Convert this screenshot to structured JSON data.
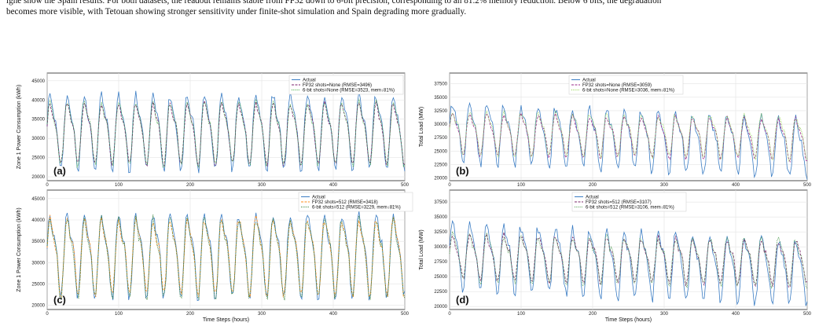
{
  "caption": {
    "line1": "ighe show the Spain results. For both datasets, the readout remains stable from FP32 down to 6-bit precision, corresponding to an 81.2% memory reduction. Below 6 bits, the degradation",
    "line2": "becomes more visible, with Tetouan showing stronger sensitivity under finite-shot simulation and Spain degrading more gradually."
  },
  "colors": {
    "actual": "#3b7dc4",
    "fp32_a": "#7a1f6e",
    "six_a": "#3aa63a",
    "fp32_c": "#ff8c1a",
    "six_c": "#2c7a2c",
    "fp32_b": "#9a2a8a",
    "six_b": "#8fd14a",
    "fp32_d": "#7a2a6a",
    "six_d": "#4a9a4a"
  },
  "chart_data": [
    {
      "panel": "(a)",
      "type": "line",
      "xlabel": "",
      "ylabel": "Zone 1 Power Consumption (kWh)",
      "xlim": [
        0,
        500
      ],
      "ylim": [
        19000,
        47000
      ],
      "xticks": [
        0,
        100,
        200,
        300,
        400,
        500
      ],
      "yticks": [
        20000,
        25000,
        30000,
        35000,
        40000,
        45000
      ],
      "period": 24,
      "n": 500,
      "series": [
        {
          "name": "Actual",
          "base": 32500,
          "amp": 11500,
          "trend": 0,
          "noise": 1200
        },
        {
          "name": "FP32 shots=None (RMSE=3496)",
          "base": 32000,
          "amp": 9500,
          "trend": 0,
          "noise": 800
        },
        {
          "name": "6-bit shots=None (RMSE=3523, mem↓81%)",
          "base": 32100,
          "amp": 9700,
          "trend": 0,
          "noise": 900
        }
      ]
    },
    {
      "panel": "(b)",
      "type": "line",
      "xlabel": "",
      "ylabel": "Total Load (MW)",
      "xlim": [
        0,
        500
      ],
      "ylim": [
        19500,
        39500
      ],
      "xticks": [
        0,
        100,
        200,
        300,
        400,
        500
      ],
      "yticks": [
        20000,
        22500,
        25000,
        27500,
        30000,
        32500,
        35000,
        37500
      ],
      "period": 24,
      "n": 500,
      "series": [
        {
          "name": "Actual",
          "base": 29000,
          "amp": 6500,
          "trend": -6,
          "noise": 900
        },
        {
          "name": "FP32 shots=None (RMSE=3059)",
          "base": 28500,
          "amp": 4500,
          "trend": -2,
          "noise": 500
        },
        {
          "name": "6-bit shots=None (RMSE=3036, mem↓81%)",
          "base": 28800,
          "amp": 4700,
          "trend": -2,
          "noise": 600
        }
      ]
    },
    {
      "panel": "(c)",
      "type": "line",
      "xlabel": "Time Steps (hours)",
      "ylabel": "Zone 1 Power Consumption (kWh)",
      "xlim": [
        0,
        500
      ],
      "ylim": [
        19000,
        47000
      ],
      "xticks": [
        0,
        100,
        200,
        300,
        400,
        500
      ],
      "yticks": [
        20000,
        25000,
        30000,
        35000,
        40000,
        45000
      ],
      "period": 24,
      "n": 500,
      "series": [
        {
          "name": "Actual",
          "base": 32500,
          "amp": 11500,
          "trend": 0,
          "noise": 1200
        },
        {
          "name": "FP32 shots=512 (RMSE=3418)",
          "base": 32200,
          "amp": 10500,
          "trend": 0,
          "noise": 1100
        },
        {
          "name": "6-bit shots=512 (RMSE=3229, mem↓81%)",
          "base": 32000,
          "amp": 10800,
          "trend": 0,
          "noise": 1100
        }
      ]
    },
    {
      "panel": "(d)",
      "type": "line",
      "xlabel": "Time Steps (hours)",
      "ylabel": "Total Load (MW)",
      "xlim": [
        0,
        500
      ],
      "ylim": [
        19500,
        39500
      ],
      "xticks": [
        0,
        100,
        200,
        300,
        400,
        500
      ],
      "yticks": [
        20000,
        22500,
        25000,
        27500,
        30000,
        32500,
        35000,
        37500
      ],
      "period": 24,
      "n": 500,
      "series": [
        {
          "name": "Actual",
          "base": 29000,
          "amp": 6500,
          "trend": -6,
          "noise": 900
        },
        {
          "name": "FP32 shots=512 (RMSE=3107)",
          "base": 28600,
          "amp": 4500,
          "trend": -2,
          "noise": 600
        },
        {
          "name": "6-bit shots=512 (RMSE=3106, mem↓81%)",
          "base": 28600,
          "amp": 4600,
          "trend": -2,
          "noise": 650
        }
      ]
    }
  ]
}
